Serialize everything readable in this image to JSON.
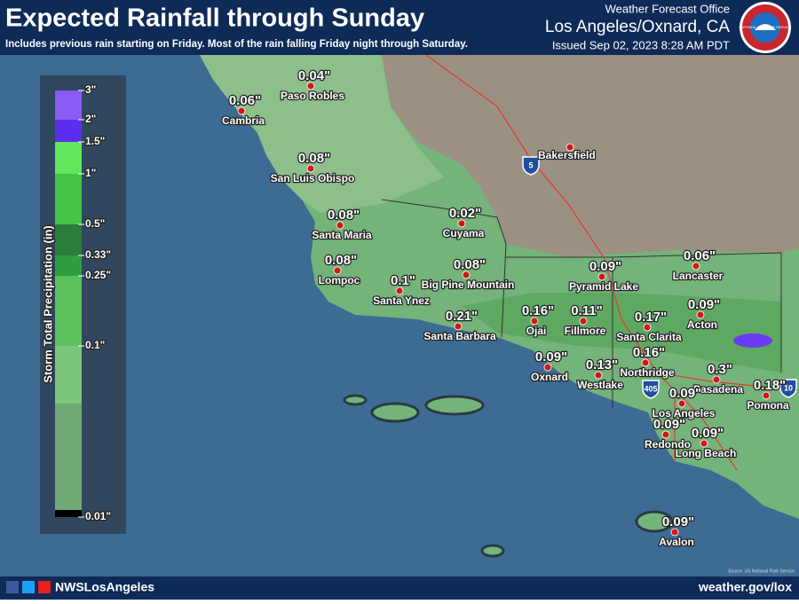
{
  "header": {
    "title": "Expected Rainfall through Sunday",
    "subtitle": "Includes previous rain starting on Friday. Most of the rain falling Friday night through Saturday.",
    "office": "Weather Forecast Office",
    "location": "Los Angeles/Oxnard, CA",
    "issued": "Issued Sep 02, 2023 8:28 AM PDT",
    "logo_text": "NATIONAL WEATHER SERVICE"
  },
  "legend": {
    "title": "Storm Total Precipitation (in)",
    "labels": [
      "3\"",
      "2\"",
      "1.5\"",
      "1\"",
      "0.5\"",
      "0.33\"",
      "0.25\"",
      "0.1\"",
      "0.01\""
    ]
  },
  "map": {
    "places": [
      {
        "name": "Paso Robles",
        "value": "0.04\""
      },
      {
        "name": "Cambria",
        "value": "0.06\""
      },
      {
        "name": "Bakersfield"
      },
      {
        "name": "San Luis Obispo",
        "value": "0.08\""
      },
      {
        "name": "Santa Maria",
        "value": "0.08\""
      },
      {
        "name": "Cuyama",
        "value": "0.02\""
      },
      {
        "name": "Lompoc",
        "value": "0.08\""
      },
      {
        "name": "Santa Ynez",
        "value": "0.1\""
      },
      {
        "name": "Big Pine Mountain",
        "value": "0.08\""
      },
      {
        "name": "Santa Barbara",
        "value": "0.21\""
      },
      {
        "name": "Ojai",
        "value": "0.16\""
      },
      {
        "name": "Fillmore",
        "value": "0.11\""
      },
      {
        "name": "Pyramid Lake",
        "value": "0.09\""
      },
      {
        "name": "Lancaster",
        "value": "0.06\""
      },
      {
        "name": "Acton",
        "value": "0.09\""
      },
      {
        "name": "Santa Clarita",
        "value": "0.17\""
      },
      {
        "name": "Oxnard",
        "value": "0.09\""
      },
      {
        "name": "Westlake",
        "value": "0.13\""
      },
      {
        "name": "Northridge",
        "value": "0.16\""
      },
      {
        "name": "Pasadena",
        "value": "0.3\""
      },
      {
        "name": "Pomona",
        "value": "0.18\""
      },
      {
        "name": "Los Angeles",
        "value": "0.09\""
      },
      {
        "name": "Redondo",
        "value": "0.09\""
      },
      {
        "name": "Long Beach",
        "value": "0.09\""
      },
      {
        "name": "Avalon",
        "value": "0.09\""
      }
    ],
    "highways": [
      "5",
      "405",
      "10"
    ],
    "source": "Source: US National Park Service"
  },
  "footer": {
    "handle": "NWSLosAngeles",
    "url": "weather.gov/lox"
  }
}
